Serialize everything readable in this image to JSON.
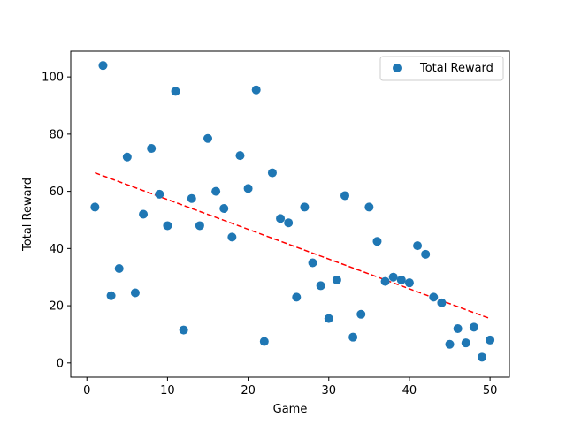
{
  "chart_data": {
    "type": "scatter",
    "xlabel": "Game",
    "ylabel": "Total Reward",
    "xlim": [
      -2,
      52.4
    ],
    "ylim": [
      -5,
      109
    ],
    "xticks": [
      0,
      10,
      20,
      30,
      40,
      50
    ],
    "yticks": [
      0,
      20,
      40,
      60,
      80,
      100
    ],
    "grid": false,
    "legend_position": "top-right",
    "series": [
      {
        "name": "Total Reward",
        "kind": "scatter",
        "color": "#1f77b4",
        "x": [
          1,
          2,
          3,
          4,
          5,
          6,
          7,
          8,
          9,
          10,
          11,
          12,
          13,
          14,
          15,
          16,
          17,
          18,
          19,
          20,
          21,
          22,
          23,
          24,
          25,
          26,
          27,
          28,
          29,
          30,
          31,
          32,
          33,
          34,
          35,
          36,
          37,
          38,
          39,
          40,
          41,
          42,
          43,
          44,
          45,
          46,
          47,
          48,
          49,
          50
        ],
        "y": [
          54.5,
          104,
          23.5,
          33,
          72,
          24.5,
          52,
          75,
          59,
          48,
          95,
          11.5,
          57.5,
          48,
          78.5,
          60,
          54,
          44,
          72.5,
          61,
          95.5,
          7.5,
          66.5,
          50.5,
          49,
          23,
          54.5,
          35,
          27,
          15.5,
          29,
          58.5,
          9,
          17,
          54.5,
          42.5,
          28.5,
          30,
          29,
          28,
          41,
          38,
          23,
          21,
          6.5,
          12,
          7,
          12.5,
          2,
          8
        ]
      },
      {
        "name": "trend",
        "kind": "line",
        "style": "dashed",
        "color": "#ff0000",
        "x": [
          1,
          50
        ],
        "y": [
          66.5,
          15.5
        ]
      }
    ]
  }
}
